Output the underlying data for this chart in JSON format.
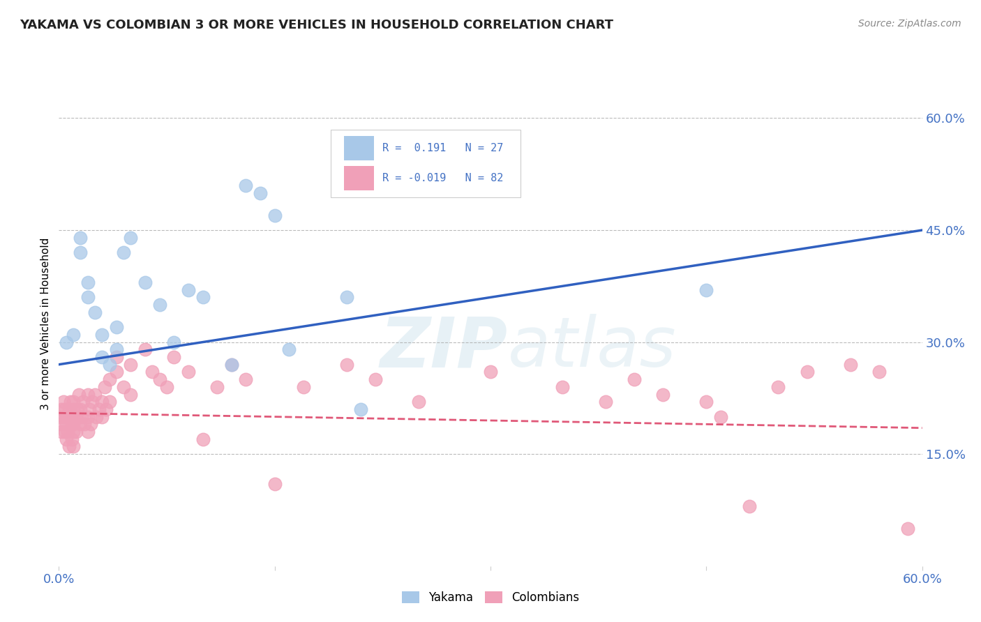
{
  "title": "YAKAMA VS COLOMBIAN 3 OR MORE VEHICLES IN HOUSEHOLD CORRELATION CHART",
  "source": "Source: ZipAtlas.com",
  "ylabel": "3 or more Vehicles in Household",
  "xlim": [
    0.0,
    0.6
  ],
  "ylim": [
    0.0,
    0.65
  ],
  "xticks": [
    0.0,
    0.15,
    0.3,
    0.45,
    0.6
  ],
  "xticklabels": [
    "0.0%",
    "",
    "",
    "",
    "60.0%"
  ],
  "yticks_right": [
    0.15,
    0.3,
    0.45,
    0.6
  ],
  "yticklabels_right": [
    "15.0%",
    "30.0%",
    "45.0%",
    "60.0%"
  ],
  "grid_yticks": [
    0.15,
    0.3,
    0.45,
    0.6
  ],
  "legend_r1": "R =  0.191",
  "legend_n1": "N = 27",
  "legend_r2": "R = -0.019",
  "legend_n2": "N = 82",
  "yakama_color": "#a8c8e8",
  "colombian_color": "#f0a0b8",
  "yakama_line_color": "#3060c0",
  "colombian_line_color": "#e05878",
  "background_color": "#ffffff",
  "watermark_zip": "ZIP",
  "watermark_atlas": "atlas",
  "yakama_x": [
    0.005,
    0.01,
    0.015,
    0.015,
    0.02,
    0.02,
    0.025,
    0.03,
    0.03,
    0.035,
    0.04,
    0.04,
    0.045,
    0.05,
    0.06,
    0.07,
    0.08,
    0.09,
    0.1,
    0.12,
    0.13,
    0.14,
    0.15,
    0.16,
    0.2,
    0.21,
    0.45
  ],
  "yakama_y": [
    0.3,
    0.31,
    0.42,
    0.44,
    0.36,
    0.38,
    0.34,
    0.28,
    0.31,
    0.27,
    0.32,
    0.29,
    0.42,
    0.44,
    0.38,
    0.35,
    0.3,
    0.37,
    0.36,
    0.27,
    0.51,
    0.5,
    0.47,
    0.29,
    0.36,
    0.21,
    0.37
  ],
  "colombian_x": [
    0.0,
    0.001,
    0.002,
    0.002,
    0.003,
    0.003,
    0.004,
    0.004,
    0.005,
    0.005,
    0.005,
    0.006,
    0.006,
    0.007,
    0.007,
    0.008,
    0.008,
    0.009,
    0.009,
    0.01,
    0.01,
    0.01,
    0.01,
    0.01,
    0.01,
    0.012,
    0.012,
    0.013,
    0.014,
    0.015,
    0.015,
    0.016,
    0.017,
    0.018,
    0.02,
    0.02,
    0.02,
    0.021,
    0.022,
    0.023,
    0.025,
    0.026,
    0.028,
    0.03,
    0.03,
    0.032,
    0.033,
    0.035,
    0.035,
    0.04,
    0.04,
    0.045,
    0.05,
    0.05,
    0.06,
    0.065,
    0.07,
    0.075,
    0.08,
    0.09,
    0.1,
    0.11,
    0.12,
    0.13,
    0.15,
    0.17,
    0.2,
    0.22,
    0.25,
    0.3,
    0.35,
    0.38,
    0.4,
    0.42,
    0.45,
    0.46,
    0.48,
    0.5,
    0.52,
    0.55,
    0.57,
    0.59
  ],
  "colombian_y": [
    0.2,
    0.19,
    0.21,
    0.18,
    0.22,
    0.2,
    0.21,
    0.18,
    0.2,
    0.19,
    0.17,
    0.2,
    0.18,
    0.21,
    0.16,
    0.2,
    0.22,
    0.19,
    0.17,
    0.2,
    0.18,
    0.21,
    0.16,
    0.19,
    0.22,
    0.2,
    0.18,
    0.21,
    0.23,
    0.19,
    0.21,
    0.2,
    0.22,
    0.19,
    0.2,
    0.23,
    0.18,
    0.21,
    0.19,
    0.22,
    0.23,
    0.2,
    0.21,
    0.22,
    0.2,
    0.24,
    0.21,
    0.25,
    0.22,
    0.26,
    0.28,
    0.24,
    0.27,
    0.23,
    0.29,
    0.26,
    0.25,
    0.24,
    0.28,
    0.26,
    0.17,
    0.24,
    0.27,
    0.25,
    0.11,
    0.24,
    0.27,
    0.25,
    0.22,
    0.26,
    0.24,
    0.22,
    0.25,
    0.23,
    0.22,
    0.2,
    0.08,
    0.24,
    0.26,
    0.27,
    0.26,
    0.05
  ],
  "yakama_trendline_x": [
    0.0,
    0.6
  ],
  "yakama_trendline_y": [
    0.27,
    0.45
  ],
  "colombian_trendline_x": [
    0.0,
    0.6
  ],
  "colombian_trendline_y": [
    0.205,
    0.185
  ]
}
